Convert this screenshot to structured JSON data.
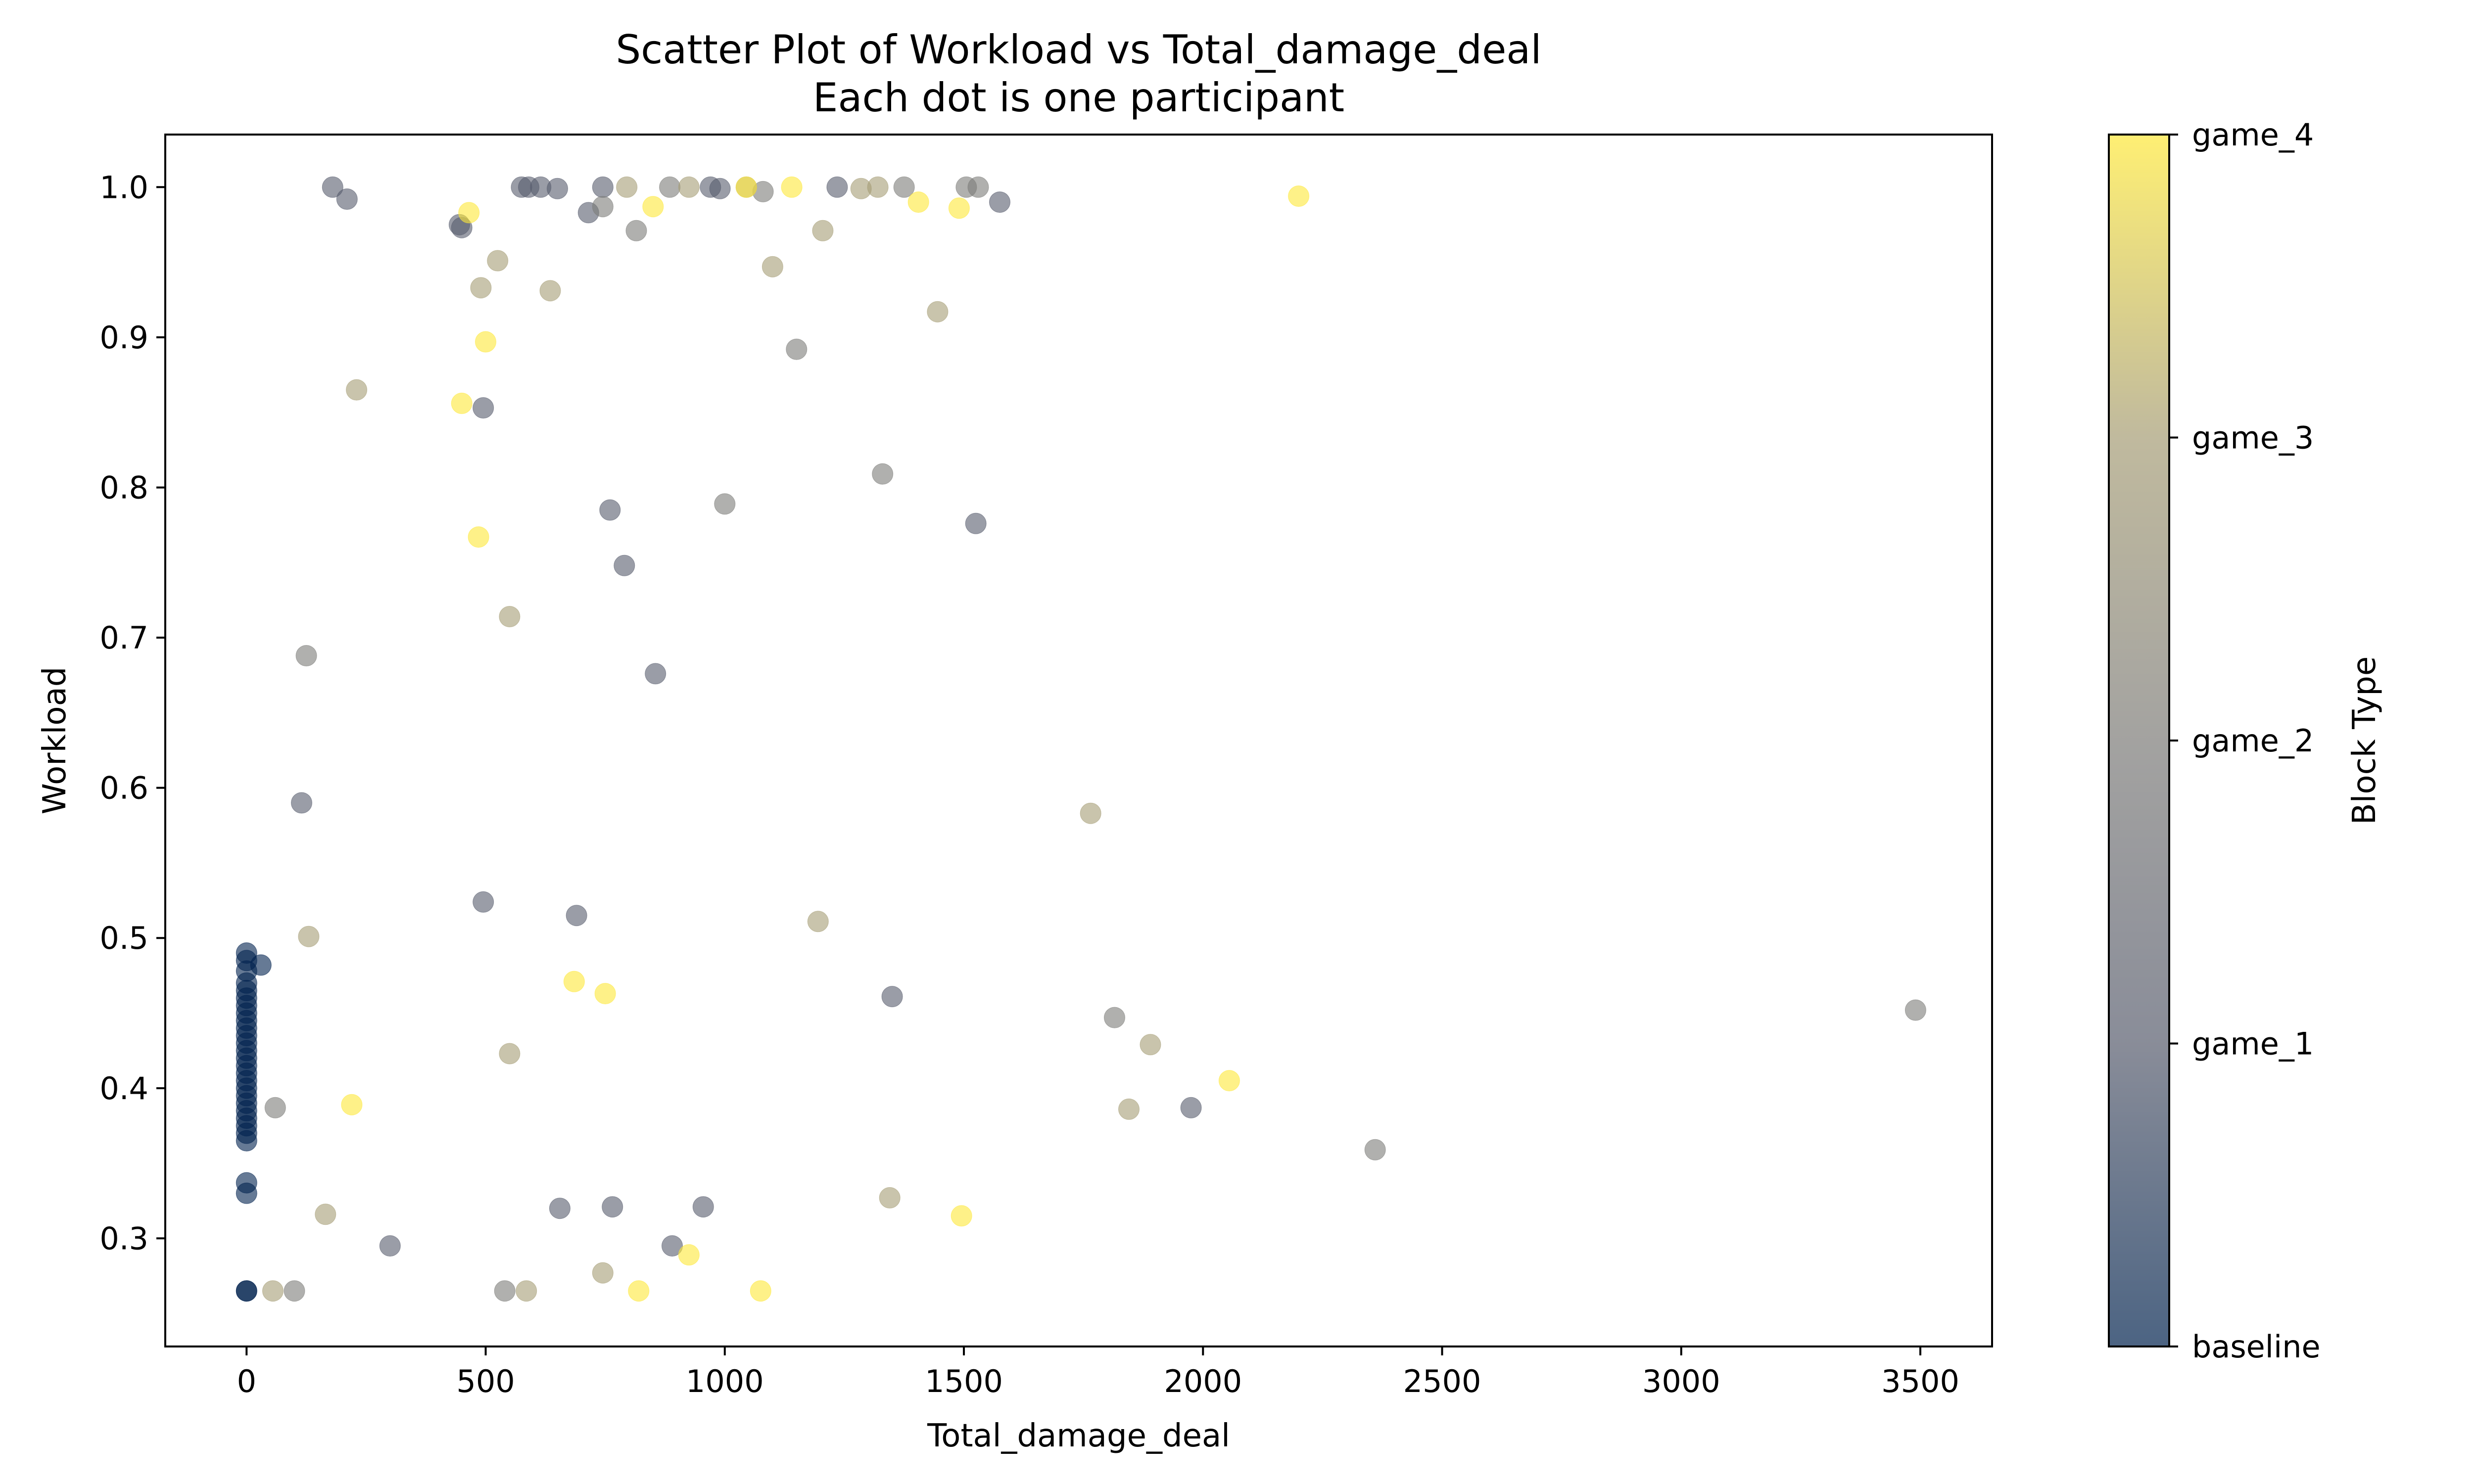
{
  "chart_data": {
    "type": "scatter",
    "title": "Scatter Plot of Workload vs Total_damage_deal",
    "subtitle": "Each dot is one participant",
    "xlabel": "Total_damage_deal",
    "ylabel": "Workload",
    "xlim": [
      -170,
      3650
    ],
    "ylim": [
      0.228,
      1.035
    ],
    "xticks": [
      0,
      500,
      1000,
      1500,
      2000,
      2500,
      3000,
      3500
    ],
    "yticks": [
      0.3,
      0.4,
      0.5,
      0.6,
      0.7,
      0.8,
      0.9,
      1.0
    ],
    "xtick_labels": [
      "0",
      "500",
      "1000",
      "1500",
      "2000",
      "2500",
      "3000",
      "3500"
    ],
    "ytick_labels": [
      "0.3",
      "0.4",
      "0.5",
      "0.6",
      "0.7",
      "0.8",
      "0.9",
      "1.0"
    ],
    "grid": false,
    "colorbar": {
      "label": "Block Type",
      "ticks": [
        "baseline",
        "game_1",
        "game_2",
        "game_3",
        "game_4"
      ],
      "colors": [
        "#00224e",
        "#575c6d",
        "#7c7b78",
        "#a59c74",
        "#fee838"
      ]
    },
    "series": [
      {
        "category": "baseline",
        "color": "#00224e",
        "points": [
          [
            0,
            0.49
          ],
          [
            0,
            0.485
          ],
          [
            0,
            0.478
          ],
          [
            0,
            0.47
          ],
          [
            0,
            0.465
          ],
          [
            0,
            0.46
          ],
          [
            0,
            0.455
          ],
          [
            0,
            0.45
          ],
          [
            0,
            0.445
          ],
          [
            0,
            0.44
          ],
          [
            0,
            0.435
          ],
          [
            0,
            0.43
          ],
          [
            0,
            0.425
          ],
          [
            0,
            0.42
          ],
          [
            0,
            0.415
          ],
          [
            0,
            0.41
          ],
          [
            0,
            0.405
          ],
          [
            0,
            0.4
          ],
          [
            0,
            0.395
          ],
          [
            0,
            0.39
          ],
          [
            0,
            0.385
          ],
          [
            0,
            0.38
          ],
          [
            0,
            0.375
          ],
          [
            0,
            0.37
          ],
          [
            0,
            0.365
          ],
          [
            0,
            0.337
          ],
          [
            0,
            0.33
          ],
          [
            0,
            0.265
          ],
          [
            0,
            0.265
          ],
          [
            30,
            0.482
          ]
        ]
      },
      {
        "category": "game_1",
        "color": "#575c6d",
        "points": [
          [
            180,
            1.0
          ],
          [
            210,
            0.992
          ],
          [
            445,
            0.975
          ],
          [
            450,
            0.973
          ],
          [
            495,
            0.853
          ],
          [
            575,
            1.0
          ],
          [
            590,
            1.0
          ],
          [
            615,
            1.0
          ],
          [
            650,
            0.999
          ],
          [
            715,
            0.983
          ],
          [
            745,
            1.0
          ],
          [
            760,
            0.785
          ],
          [
            790,
            0.748
          ],
          [
            855,
            0.676
          ],
          [
            970,
            1.0
          ],
          [
            990,
            0.999
          ],
          [
            1235,
            1.0
          ],
          [
            1525,
            0.776
          ],
          [
            1575,
            0.99
          ],
          [
            115,
            0.59
          ],
          [
            495,
            0.524
          ],
          [
            690,
            0.515
          ],
          [
            1350,
            0.461
          ],
          [
            1975,
            0.387
          ],
          [
            300,
            0.295
          ],
          [
            655,
            0.32
          ],
          [
            765,
            0.321
          ],
          [
            890,
            0.295
          ],
          [
            955,
            0.321
          ]
        ]
      },
      {
        "category": "game_2",
        "color": "#7c7b78",
        "points": [
          [
            745,
            0.987
          ],
          [
            815,
            0.971
          ],
          [
            885,
            1.0
          ],
          [
            1080,
            0.997
          ],
          [
            1150,
            0.892
          ],
          [
            1330,
            0.809
          ],
          [
            1375,
            1.0
          ],
          [
            1505,
            1.0
          ],
          [
            1530,
            1.0
          ],
          [
            1000,
            0.789
          ],
          [
            125,
            0.688
          ],
          [
            1815,
            0.447
          ],
          [
            3490,
            0.452
          ],
          [
            2360,
            0.359
          ],
          [
            60,
            0.387
          ],
          [
            100,
            0.265
          ],
          [
            540,
            0.265
          ]
        ]
      },
      {
        "category": "game_3",
        "color": "#a59c74",
        "points": [
          [
            490,
            0.933
          ],
          [
            525,
            0.951
          ],
          [
            635,
            0.931
          ],
          [
            795,
            1.0
          ],
          [
            925,
            1.0
          ],
          [
            1045,
            1.0
          ],
          [
            1100,
            0.947
          ],
          [
            1205,
            0.971
          ],
          [
            1285,
            0.999
          ],
          [
            1320,
            1.0
          ],
          [
            1445,
            0.917
          ],
          [
            230,
            0.865
          ],
          [
            550,
            0.714
          ],
          [
            1765,
            0.583
          ],
          [
            130,
            0.501
          ],
          [
            1195,
            0.511
          ],
          [
            550,
            0.423
          ],
          [
            1890,
            0.429
          ],
          [
            1845,
            0.386
          ],
          [
            165,
            0.316
          ],
          [
            1345,
            0.327
          ],
          [
            745,
            0.277
          ],
          [
            55,
            0.265
          ],
          [
            585,
            0.265
          ]
        ]
      },
      {
        "category": "game_4",
        "color": "#fee838",
        "points": [
          [
            465,
            0.983
          ],
          [
            850,
            0.987
          ],
          [
            1045,
            1.0
          ],
          [
            1140,
            1.0
          ],
          [
            1405,
            0.99
          ],
          [
            1490,
            0.986
          ],
          [
            2200,
            0.994
          ],
          [
            500,
            0.897
          ],
          [
            450,
            0.856
          ],
          [
            485,
            0.767
          ],
          [
            685,
            0.471
          ],
          [
            750,
            0.463
          ],
          [
            220,
            0.389
          ],
          [
            2055,
            0.405
          ],
          [
            1495,
            0.315
          ],
          [
            925,
            0.289
          ],
          [
            820,
            0.265
          ],
          [
            1075,
            0.265
          ]
        ]
      }
    ]
  }
}
